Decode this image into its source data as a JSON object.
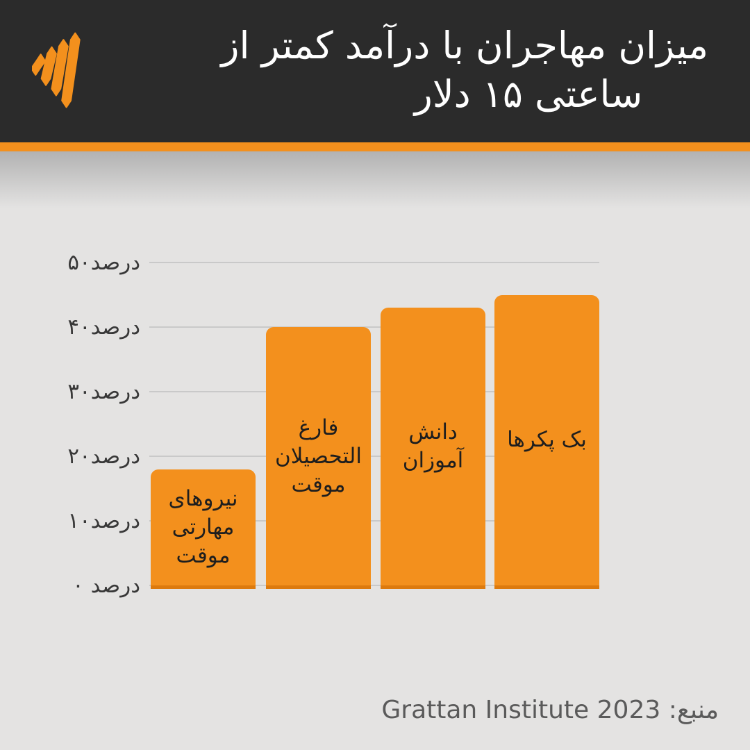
{
  "header": {
    "logo_name": "sbs-logo",
    "title_line1": "میزان مهاجران با درآمد کمتر از",
    "title_line2": "ساعتی ۱۵ دلار"
  },
  "chart_data": {
    "type": "bar",
    "title": "میزان مهاجران با درآمد کمتر از ساعتی ۱۵ دلار",
    "categories": [
      "نیروهای مهارتی موقت",
      "فارغ التحصیلان موقت",
      "دانش آموزان",
      "بک پکرها"
    ],
    "values": [
      18,
      40,
      43,
      45
    ],
    "unit": "percent",
    "ylim": [
      0,
      50
    ],
    "grid": true,
    "legend": "none",
    "y_ticks": [
      {
        "value": 50,
        "label": "۵۰درصد"
      },
      {
        "value": 40,
        "label": "۴۰درصد"
      },
      {
        "value": 30,
        "label": "۳۰درصد"
      },
      {
        "value": 20,
        "label": "۲۰درصد"
      },
      {
        "value": 10,
        "label": "۱۰درصد"
      },
      {
        "value": 0,
        "label": "۰ درصد"
      }
    ]
  },
  "source": {
    "label": "منبع: Grattan Institute 2023"
  },
  "colors": {
    "header_bg": "#2b2b2b",
    "accent_orange": "#F3901D",
    "bar_orange": "#F3901D",
    "bar_base_edge": "#DD7A0D",
    "page_bg": "#e4e3e2",
    "gridline": "#c9c9c9",
    "title_text": "#ffffff",
    "axis_text": "#383838",
    "source_text": "#5a5a5a"
  }
}
